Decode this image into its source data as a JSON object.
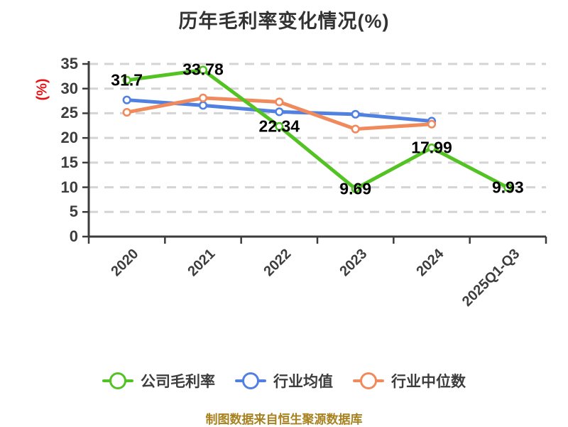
{
  "title": "历年毛利率变化情况(%)",
  "chart_data": {
    "type": "line",
    "title": "历年毛利率变化情况(%)",
    "xlabel": "",
    "ylabel": "(%)",
    "categories": [
      "2020",
      "2021",
      "2022",
      "2023",
      "2024",
      "2025Q1-Q3"
    ],
    "series": [
      {
        "name": "公司毛利率",
        "color": "#53c223",
        "values": [
          31.7,
          33.78,
          22.34,
          9.69,
          17.99,
          9.93
        ],
        "point_labels": [
          "31.7",
          "33.78",
          "22.34",
          "9.69",
          "17.99",
          "9.93"
        ]
      },
      {
        "name": "行业均值",
        "color": "#5181e0",
        "values": [
          27.7,
          26.6,
          25.3,
          24.8,
          23.4
        ]
      },
      {
        "name": "行业中位数",
        "color": "#f08a5c",
        "values": [
          25.2,
          28.1,
          27.3,
          21.8,
          22.8
        ]
      }
    ],
    "ylim": [
      0,
      35
    ],
    "ytick_step": 5,
    "grid": "horizontal-dashed",
    "legend_position": "bottom",
    "x_label_rotation_deg": 45
  },
  "footer": {
    "text": "制图数据来自恒生聚源数据库"
  },
  "styles": {
    "background": "#ffffff",
    "title_color": "#333333",
    "axis_color": "#3c3c3c",
    "grid_color": "#d4d4d4",
    "tick_label_color": "#3d3d3d",
    "data_label_color": "#000000",
    "ylabel_color": "#e21418",
    "legend_text_color": "#3d3d3d",
    "footer_color": "#a8811f"
  }
}
